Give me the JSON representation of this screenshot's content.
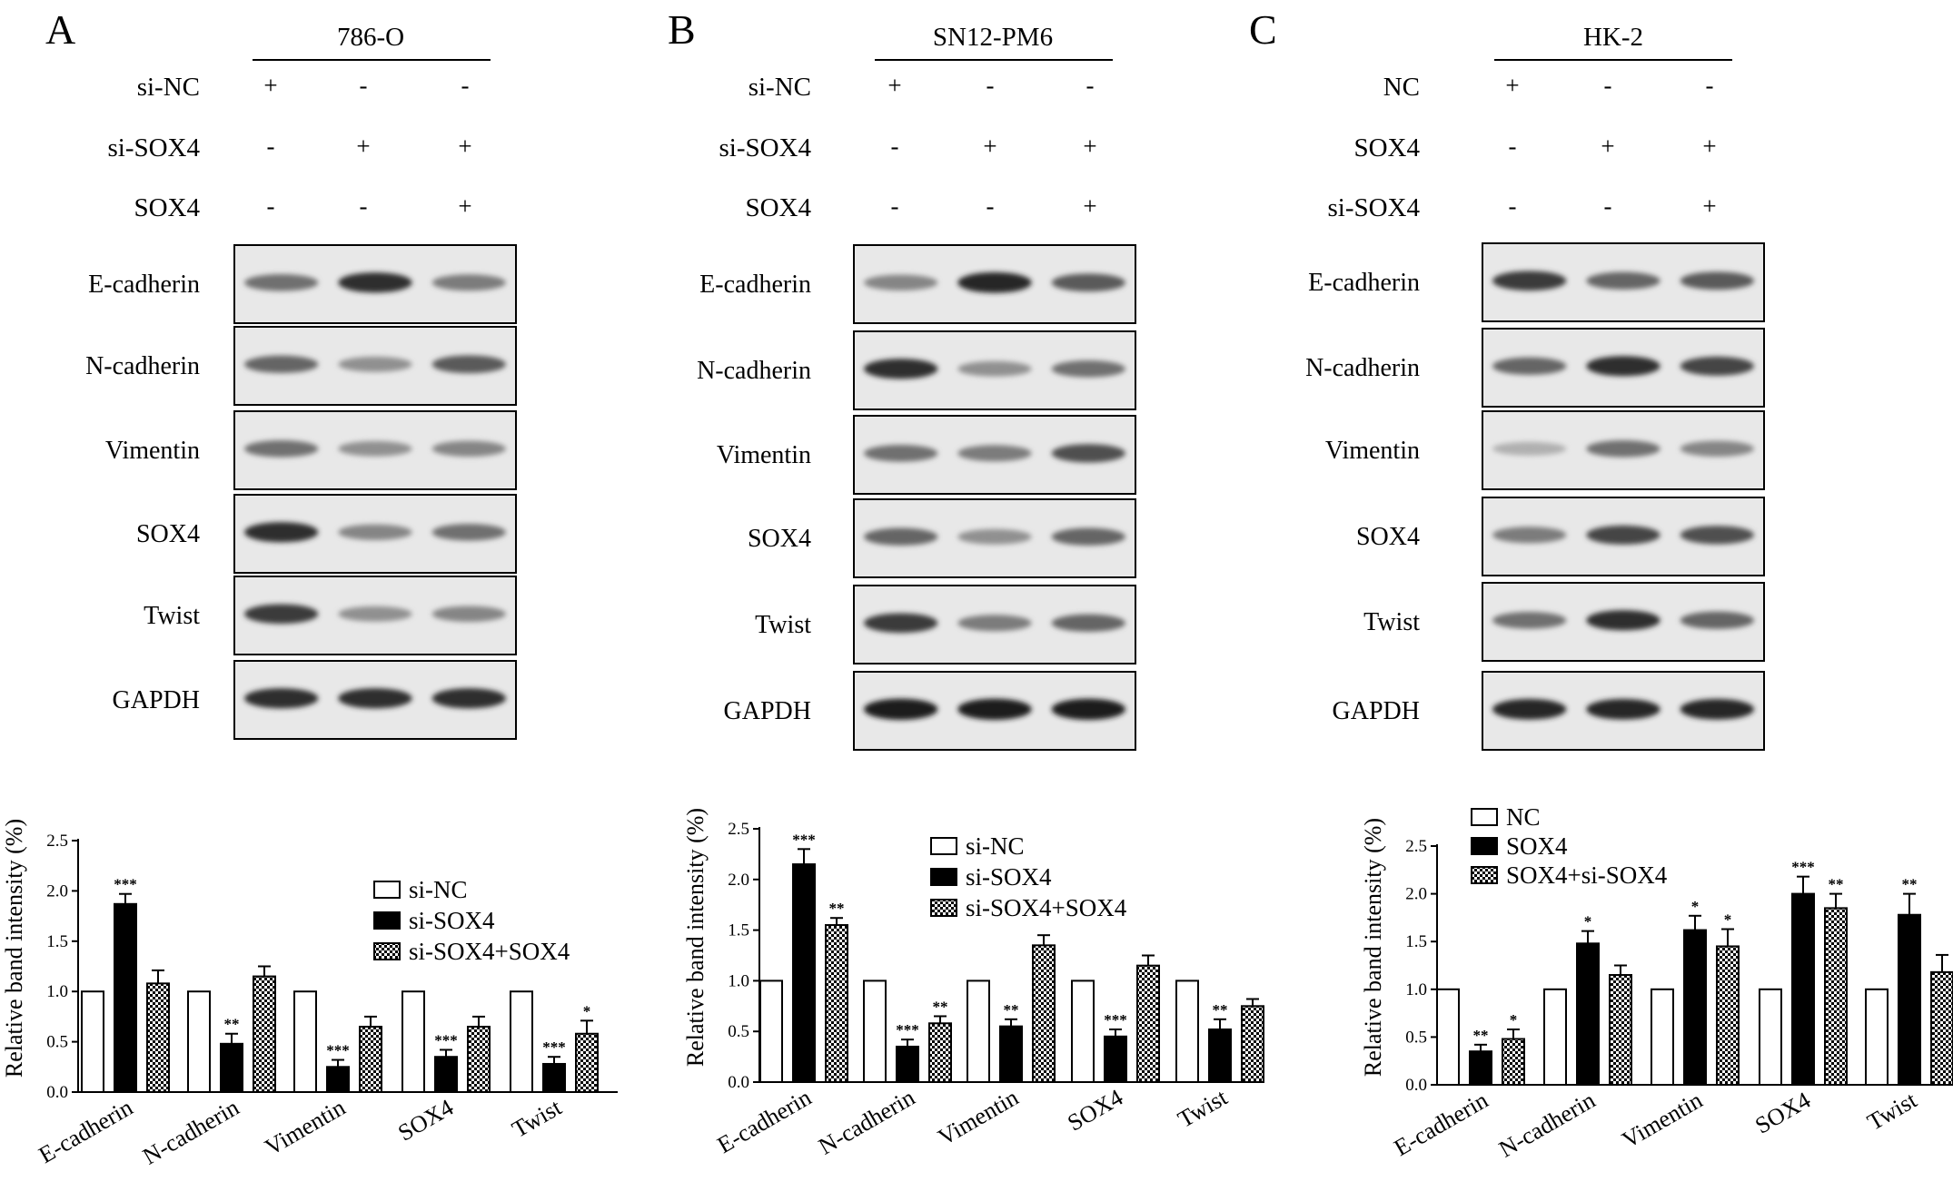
{
  "panels": [
    {
      "letter": "A",
      "cell_line": "786-O",
      "treatments": [
        {
          "label": "si-NC",
          "signs": [
            "+",
            "-",
            "-"
          ]
        },
        {
          "label": "si-SOX4",
          "signs": [
            "-",
            "+",
            "+"
          ]
        },
        {
          "label": "SOX4",
          "signs": [
            "-",
            "-",
            "+"
          ]
        }
      ],
      "blots": [
        {
          "label": "E-cadherin",
          "intensities": [
            0.55,
            0.85,
            0.5
          ]
        },
        {
          "label": "N-cadherin",
          "intensities": [
            0.6,
            0.4,
            0.65
          ]
        },
        {
          "label": "Vimentin",
          "intensities": [
            0.55,
            0.4,
            0.45
          ]
        },
        {
          "label": "SOX4",
          "intensities": [
            0.85,
            0.45,
            0.55
          ]
        },
        {
          "label": "Twist",
          "intensities": [
            0.8,
            0.4,
            0.45
          ]
        },
        {
          "label": "GAPDH",
          "intensities": [
            0.85,
            0.85,
            0.85
          ]
        }
      ]
    },
    {
      "letter": "B",
      "cell_line": "SN12-PM6",
      "treatments": [
        {
          "label": "si-NC",
          "signs": [
            "+",
            "-",
            "-"
          ]
        },
        {
          "label": "si-SOX4",
          "signs": [
            "-",
            "+",
            "+"
          ]
        },
        {
          "label": "SOX4",
          "signs": [
            "-",
            "-",
            "+"
          ]
        }
      ],
      "blots": [
        {
          "label": "E-cadherin",
          "intensities": [
            0.45,
            0.9,
            0.65
          ]
        },
        {
          "label": "N-cadherin",
          "intensities": [
            0.85,
            0.4,
            0.55
          ]
        },
        {
          "label": "Vimentin",
          "intensities": [
            0.55,
            0.5,
            0.7
          ]
        },
        {
          "label": "SOX4",
          "intensities": [
            0.6,
            0.4,
            0.6
          ]
        },
        {
          "label": "Twist",
          "intensities": [
            0.8,
            0.5,
            0.6
          ]
        },
        {
          "label": "GAPDH",
          "intensities": [
            0.95,
            0.95,
            0.95
          ]
        }
      ]
    },
    {
      "letter": "C",
      "cell_line": "HK-2",
      "treatments": [
        {
          "label": "NC",
          "signs": [
            "+",
            "-",
            "-"
          ]
        },
        {
          "label": "SOX4",
          "signs": [
            "-",
            "+",
            "+"
          ]
        },
        {
          "label": "si-SOX4",
          "signs": [
            "-",
            "-",
            "+"
          ]
        }
      ],
      "blots": [
        {
          "label": "E-cadherin",
          "intensities": [
            0.8,
            0.6,
            0.65
          ]
        },
        {
          "label": "N-cadherin",
          "intensities": [
            0.6,
            0.85,
            0.75
          ]
        },
        {
          "label": "Vimentin",
          "intensities": [
            0.25,
            0.55,
            0.45
          ]
        },
        {
          "label": "SOX4",
          "intensities": [
            0.5,
            0.75,
            0.7
          ]
        },
        {
          "label": "Twist",
          "intensities": [
            0.55,
            0.85,
            0.6
          ]
        },
        {
          "label": "GAPDH",
          "intensities": [
            0.9,
            0.9,
            0.9
          ]
        }
      ]
    }
  ],
  "chart_data": [
    {
      "type": "bar",
      "panel": "A",
      "title": "",
      "xlabel": "",
      "ylabel": "Relative band intensity (%)",
      "ylim": [
        0,
        2.5
      ],
      "yticks": [
        "0.0",
        "0.5",
        "1.0",
        "1.5",
        "2.0",
        "2.5"
      ],
      "categories": [
        "E-cadherin",
        "N-cadherin",
        "Vimentin",
        "SOX4",
        "Twist"
      ],
      "legend_position": "right",
      "series": [
        {
          "name": "si-NC",
          "pattern": "open",
          "values": [
            1.0,
            1.0,
            1.0,
            1.0,
            1.0
          ],
          "errors": [
            0,
            0,
            0,
            0,
            0
          ],
          "significance": [
            "",
            "",
            "",
            "",
            ""
          ]
        },
        {
          "name": "si-SOX4",
          "pattern": "solid",
          "values": [
            1.87,
            0.48,
            0.25,
            0.35,
            0.28
          ],
          "errors": [
            0.1,
            0.1,
            0.07,
            0.07,
            0.07
          ],
          "significance": [
            "***",
            "**",
            "***",
            "***",
            "***"
          ]
        },
        {
          "name": "si-SOX4+SOX4",
          "pattern": "checker",
          "values": [
            1.08,
            1.15,
            0.65,
            0.65,
            0.58
          ],
          "errors": [
            0.13,
            0.1,
            0.1,
            0.1,
            0.13
          ],
          "significance": [
            "",
            "",
            "",
            "",
            "*"
          ]
        }
      ]
    },
    {
      "type": "bar",
      "panel": "B",
      "title": "",
      "xlabel": "",
      "ylabel": "Relative band intensity (%)",
      "ylim": [
        0,
        2.5
      ],
      "yticks": [
        "0.0",
        "0.5",
        "1.0",
        "1.5",
        "2.0",
        "2.5"
      ],
      "categories": [
        "E-cadherin",
        "N-cadherin",
        "Vimentin",
        "SOX4",
        "Twist"
      ],
      "legend_position": "right",
      "series": [
        {
          "name": "si-NC",
          "pattern": "open",
          "values": [
            1.0,
            1.0,
            1.0,
            1.0,
            1.0
          ],
          "errors": [
            0,
            0,
            0,
            0,
            0
          ],
          "significance": [
            "",
            "",
            "",
            "",
            ""
          ]
        },
        {
          "name": "si-SOX4",
          "pattern": "solid",
          "values": [
            2.15,
            0.35,
            0.55,
            0.45,
            0.52
          ],
          "errors": [
            0.15,
            0.07,
            0.07,
            0.07,
            0.1
          ],
          "significance": [
            "***",
            "***",
            "**",
            "***",
            "**"
          ]
        },
        {
          "name": "si-SOX4+SOX4",
          "pattern": "checker",
          "values": [
            1.55,
            0.58,
            1.35,
            1.15,
            0.75
          ],
          "errors": [
            0.07,
            0.07,
            0.1,
            0.1,
            0.07
          ],
          "significance": [
            "**",
            "**",
            "",
            "",
            ""
          ]
        }
      ]
    },
    {
      "type": "bar",
      "panel": "C",
      "title": "",
      "xlabel": "",
      "ylabel": "Relative band intensity (%)",
      "ylim": [
        0,
        2.5
      ],
      "yticks": [
        "0.0",
        "0.5",
        "1.0",
        "1.5",
        "2.0",
        "2.5"
      ],
      "categories": [
        "E-cadherin",
        "N-cadherin",
        "Vimentin",
        "SOX4",
        "Twist"
      ],
      "legend_position": "top-left",
      "series": [
        {
          "name": "NC",
          "pattern": "open",
          "values": [
            1.0,
            1.0,
            1.0,
            1.0,
            1.0
          ],
          "errors": [
            0,
            0,
            0,
            0,
            0
          ],
          "significance": [
            "",
            "",
            "",
            "",
            ""
          ]
        },
        {
          "name": "SOX4",
          "pattern": "solid",
          "values": [
            0.35,
            1.48,
            1.62,
            2.0,
            1.78
          ],
          "errors": [
            0.07,
            0.13,
            0.15,
            0.18,
            0.22
          ],
          "significance": [
            "**",
            "*",
            "*",
            "***",
            "**"
          ]
        },
        {
          "name": "SOX4+si-SOX4",
          "pattern": "checker",
          "values": [
            0.48,
            1.15,
            1.45,
            1.85,
            1.18
          ],
          "errors": [
            0.1,
            0.1,
            0.18,
            0.15,
            0.18
          ],
          "significance": [
            "*",
            "",
            "*",
            "**",
            ""
          ]
        }
      ]
    }
  ]
}
